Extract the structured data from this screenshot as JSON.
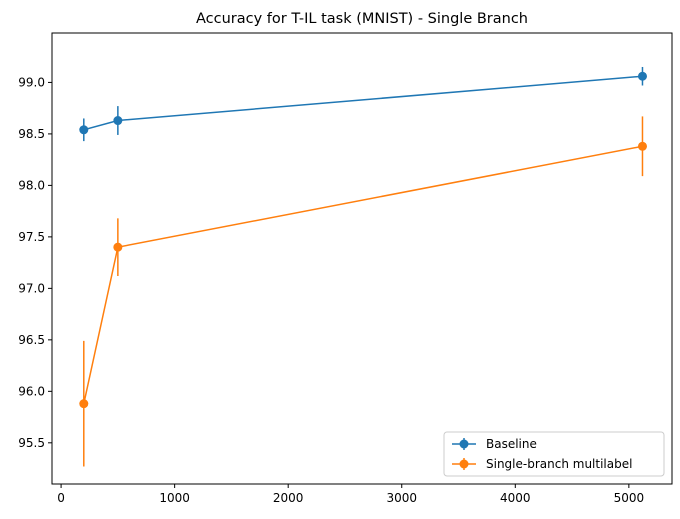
{
  "chart_data": {
    "type": "line",
    "title": "Accuracy for T-IL task (MNIST) - Single Branch",
    "xlabel": "",
    "ylabel": "",
    "xlim": [
      -80,
      5380
    ],
    "ylim": [
      95.1,
      99.48
    ],
    "xticks": [
      0,
      1000,
      2000,
      3000,
      4000,
      5000
    ],
    "yticks": [
      95.5,
      96.0,
      96.5,
      97.0,
      97.5,
      98.0,
      98.5,
      99.0
    ],
    "ytick_labels": [
      "95.5",
      "96.0",
      "96.5",
      "97.0",
      "97.5",
      "98.0",
      "98.5",
      "99.0"
    ],
    "grid": false,
    "legend_position": "lower right",
    "series": [
      {
        "name": "Baseline",
        "color": "#1f77b4",
        "x": [
          200,
          500,
          5120
        ],
        "y": [
          98.54,
          98.63,
          99.06
        ],
        "yerr": [
          0.11,
          0.14,
          0.09
        ]
      },
      {
        "name": "Single-branch multilabel",
        "color": "#ff7f0e",
        "x": [
          200,
          500,
          5120
        ],
        "y": [
          95.88,
          97.4,
          98.38
        ],
        "yerr": [
          0.61,
          0.28,
          0.29
        ]
      }
    ]
  }
}
